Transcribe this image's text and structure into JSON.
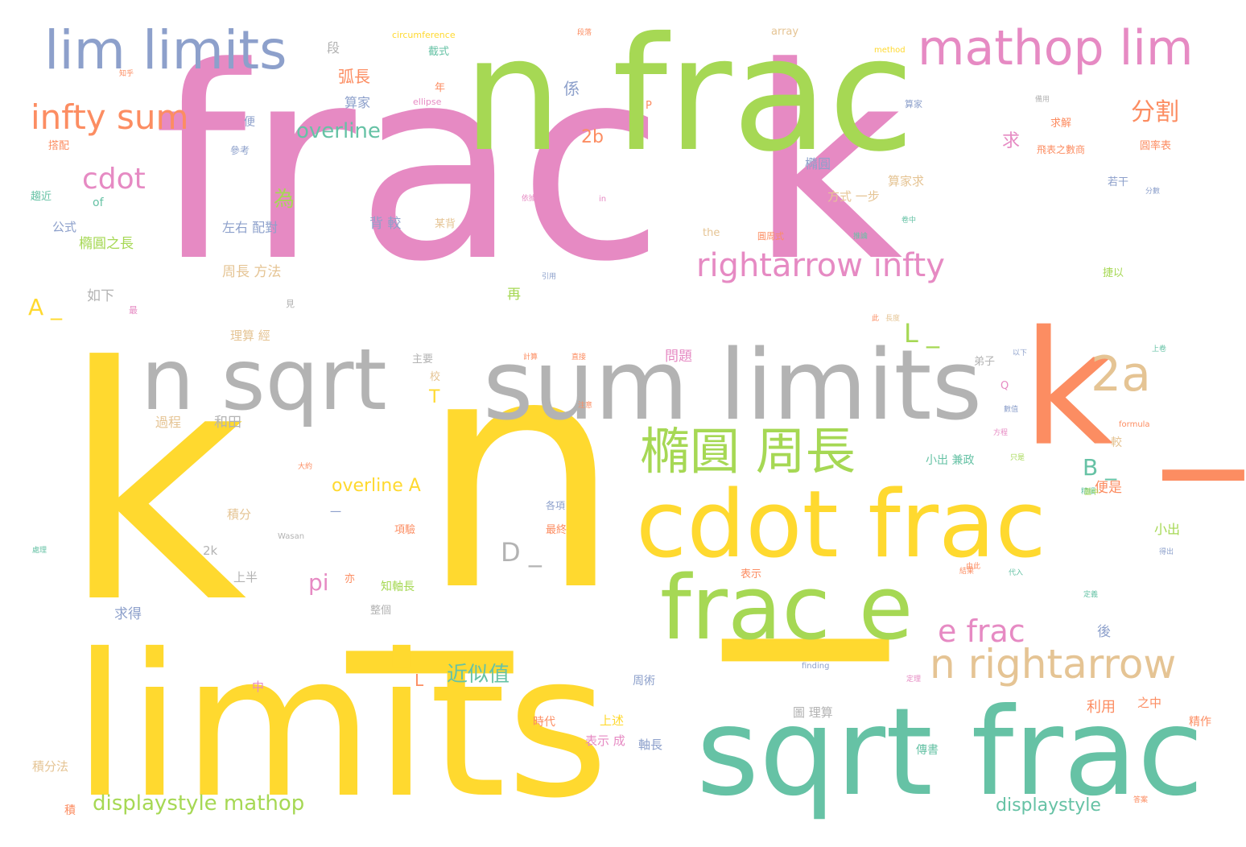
{
  "colors": {
    "pink": "#e68ac3",
    "green": "#a6d854",
    "yellow": "#ffd92f",
    "orange": "#fc8d62",
    "teal": "#66c2a5",
    "blue": "#8da0cb",
    "gray": "#b3b3b3",
    "tan": "#e5c494"
  },
  "words": [
    {
      "text": "frac k",
      "color": "pink"
    },
    {
      "text": "k _",
      "color": "yellow"
    },
    {
      "text": "n _",
      "color": "yellow"
    },
    {
      "text": "k _",
      "color": "orange"
    },
    {
      "text": "n frac",
      "color": "green"
    },
    {
      "text": "limits",
      "color": "yellow"
    },
    {
      "text": "sum limits",
      "color": "gray"
    },
    {
      "text": "sqrt frac",
      "color": "teal"
    },
    {
      "text": "n sqrt",
      "color": "gray"
    },
    {
      "text": "cdot frac",
      "color": "yellow"
    },
    {
      "text": "frac e",
      "color": "green"
    },
    {
      "text": "lim limits",
      "color": "blue"
    },
    {
      "text": "mathop lim",
      "color": "pink"
    },
    {
      "text": "橢圓 周長",
      "color": "green"
    },
    {
      "text": "n rightarrow",
      "color": "tan"
    },
    {
      "text": "rightarrow infty",
      "color": "pink"
    },
    {
      "text": "infty sum",
      "color": "orange"
    },
    {
      "text": "2a",
      "color": "tan"
    },
    {
      "text": "e frac",
      "color": "pink"
    },
    {
      "text": "cdot",
      "color": "pink"
    },
    {
      "text": "分割",
      "color": "orange"
    },
    {
      "text": "displaystyle mathop",
      "color": "green"
    },
    {
      "text": "displaystyle",
      "color": "teal"
    },
    {
      "text": "overline",
      "color": "teal"
    },
    {
      "text": "overline A",
      "color": "yellow"
    },
    {
      "text": "近似值",
      "color": "teal"
    },
    {
      "text": "L _",
      "color": "green"
    },
    {
      "text": "B _",
      "color": "teal"
    },
    {
      "text": "D _",
      "color": "gray"
    },
    {
      "text": "A _",
      "color": "yellow"
    },
    {
      "text": "pi",
      "color": "pink"
    },
    {
      "text": "2b",
      "color": "orange"
    },
    {
      "text": "為",
      "color": "green"
    },
    {
      "text": "弧長",
      "color": "orange"
    },
    {
      "text": "利用",
      "color": "orange"
    },
    {
      "text": "L",
      "color": "orange"
    },
    {
      "text": "T",
      "color": "yellow"
    },
    {
      "text": "求",
      "color": "pink"
    },
    {
      "text": "係",
      "color": "blue"
    },
    {
      "text": "背 較",
      "color": "blue"
    },
    {
      "text": "周長 方法",
      "color": "tan"
    },
    {
      "text": "橢圓之長",
      "color": "green"
    },
    {
      "text": "左右 配對",
      "color": "blue"
    },
    {
      "text": "如下",
      "color": "gray"
    },
    {
      "text": "公式",
      "color": "blue"
    },
    {
      "text": "算家",
      "color": "blue"
    },
    {
      "text": "問題",
      "color": "pink"
    },
    {
      "text": "和田",
      "color": "gray"
    },
    {
      "text": "過程",
      "color": "tan"
    },
    {
      "text": "求得",
      "color": "blue"
    },
    {
      "text": "上半",
      "color": "gray"
    },
    {
      "text": "積分",
      "color": "tan"
    },
    {
      "text": "2k",
      "color": "gray"
    },
    {
      "text": "再",
      "color": "green"
    },
    {
      "text": "便是",
      "color": "orange"
    },
    {
      "text": "小出",
      "color": "green"
    },
    {
      "text": "後",
      "color": "blue"
    },
    {
      "text": "上述",
      "color": "yellow"
    },
    {
      "text": "表示 成",
      "color": "pink"
    },
    {
      "text": "軸長",
      "color": "blue"
    },
    {
      "text": "積分法",
      "color": "tan"
    },
    {
      "text": "方式 一步",
      "color": "tan"
    },
    {
      "text": "算家求",
      "color": "tan"
    },
    {
      "text": "橢圓",
      "color": "blue"
    },
    {
      "text": "段",
      "color": "gray"
    },
    {
      "text": "截式",
      "color": "teal"
    },
    {
      "text": "算家",
      "color": "blue"
    },
    {
      "text": "求解",
      "color": "orange"
    },
    {
      "text": "若干",
      "color": "blue"
    },
    {
      "text": "便",
      "color": "blue"
    },
    {
      "text": "參考",
      "color": "blue"
    },
    {
      "text": "趨近",
      "color": "teal"
    },
    {
      "text": "of",
      "color": "teal"
    },
    {
      "text": "理算 經",
      "color": "tan"
    },
    {
      "text": "主要",
      "color": "gray"
    },
    {
      "text": "校",
      "color": "tan"
    },
    {
      "text": "小出 兼政",
      "color": "teal"
    },
    {
      "text": "較",
      "color": "tan"
    },
    {
      "text": "最終",
      "color": "orange"
    },
    {
      "text": "各項",
      "color": "blue"
    },
    {
      "text": "項驗",
      "color": "orange"
    },
    {
      "text": "知軸長",
      "color": "green"
    },
    {
      "text": "整個",
      "color": "gray"
    },
    {
      "text": "周術",
      "color": "blue"
    },
    {
      "text": "圖 理算",
      "color": "gray"
    },
    {
      "text": "之中",
      "color": "orange"
    },
    {
      "text": "精作",
      "color": "orange"
    },
    {
      "text": "傳書",
      "color": "teal"
    },
    {
      "text": "時代",
      "color": "orange"
    },
    {
      "text": "中",
      "color": "pink"
    },
    {
      "text": "積",
      "color": "orange"
    },
    {
      "text": "circumference",
      "color": "yellow"
    },
    {
      "text": "array",
      "color": "tan"
    },
    {
      "text": "method",
      "color": "yellow"
    },
    {
      "text": "ellipse",
      "color": "pink"
    },
    {
      "text": "the",
      "color": "tan"
    },
    {
      "text": "formula",
      "color": "orange"
    },
    {
      "text": "finding",
      "color": "blue"
    },
    {
      "text": "Wasan",
      "color": "gray"
    },
    {
      "text": "P",
      "color": "orange"
    },
    {
      "text": "Q",
      "color": "pink"
    },
    {
      "text": "in",
      "color": "pink"
    },
    {
      "text": "圓率表",
      "color": "orange"
    },
    {
      "text": "飛表之數商",
      "color": "orange"
    },
    {
      "text": "弟子",
      "color": "gray"
    },
    {
      "text": "表示",
      "color": "orange"
    },
    {
      "text": "圓周式",
      "color": "orange"
    },
    {
      "text": "年",
      "color": "orange"
    },
    {
      "text": "撘配",
      "color": "orange"
    },
    {
      "text": "亦",
      "color": "orange"
    },
    {
      "text": "一",
      "color": "blue"
    },
    {
      "text": "段落",
      "color": "orange"
    },
    {
      "text": "直接",
      "color": "orange"
    },
    {
      "text": "知乎",
      "color": "orange"
    },
    {
      "text": "備用",
      "color": "gray"
    },
    {
      "text": "捷以",
      "color": "green"
    },
    {
      "text": "最",
      "color": "pink"
    },
    {
      "text": "某背",
      "color": "tan"
    },
    {
      "text": "上卷",
      "color": "teal"
    },
    {
      "text": "計算",
      "color": "orange"
    },
    {
      "text": "方程",
      "color": "pink"
    },
    {
      "text": "處理",
      "color": "teal"
    },
    {
      "text": "此",
      "color": "orange"
    },
    {
      "text": "見",
      "color": "gray"
    },
    {
      "text": "卷中",
      "color": "teal"
    },
    {
      "text": "引用",
      "color": "blue"
    },
    {
      "text": "注意",
      "color": "orange"
    },
    {
      "text": "以下",
      "color": "blue"
    },
    {
      "text": "得出",
      "color": "blue"
    },
    {
      "text": "精細",
      "color": "teal"
    },
    {
      "text": "由此",
      "color": "orange"
    },
    {
      "text": "定理",
      "color": "pink"
    },
    {
      "text": "大約",
      "color": "orange"
    },
    {
      "text": "數值",
      "color": "blue"
    },
    {
      "text": "只是",
      "color": "green"
    },
    {
      "text": "代入",
      "color": "teal"
    },
    {
      "text": "結果",
      "color": "orange"
    },
    {
      "text": "依據",
      "color": "pink"
    },
    {
      "text": "推論",
      "color": "teal"
    },
    {
      "text": "分數",
      "color": "blue"
    },
    {
      "text": "圖中",
      "color": "green"
    },
    {
      "text": "長度",
      "color": "tan"
    },
    {
      "text": "答案",
      "color": "orange"
    },
    {
      "text": "定義",
      "color": "teal"
    }
  ]
}
